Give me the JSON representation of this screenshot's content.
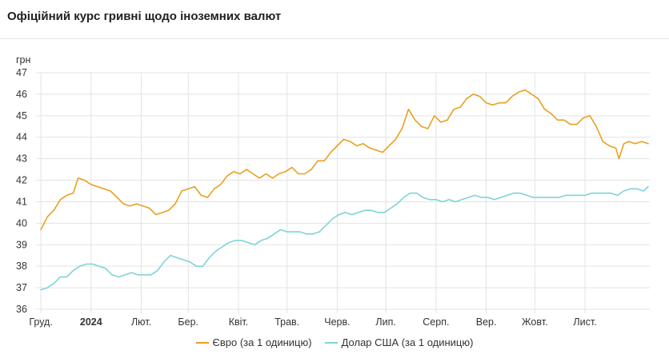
{
  "header": {
    "title": "Офіційний курс гривні щодо іноземних валют"
  },
  "chart_data": {
    "type": "line",
    "title": "Офіційний курс гривні щодо іноземних валют",
    "ylabel": "грн",
    "ylim": [
      36,
      47
    ],
    "yticks": [
      36,
      37,
      38,
      39,
      40,
      41,
      42,
      43,
      44,
      45,
      46,
      47
    ],
    "x_tick_labels": [
      {
        "label": "Груд.",
        "bold": false
      },
      {
        "label": "2024",
        "bold": true
      },
      {
        "label": "Лют.",
        "bold": false
      },
      {
        "label": "Бер.",
        "bold": false
      },
      {
        "label": "Квіт.",
        "bold": false
      },
      {
        "label": "Трав.",
        "bold": false
      },
      {
        "label": "Черв.",
        "bold": false
      },
      {
        "label": "Лип.",
        "bold": false
      },
      {
        "label": "Серп.",
        "bold": false
      },
      {
        "label": "Вер.",
        "bold": false
      },
      {
        "label": "Жовт.",
        "bold": false
      },
      {
        "label": "Лист.",
        "bold": false
      }
    ],
    "grid": true,
    "legend_position": "bottom",
    "series": [
      {
        "name": "Євро (за 1 одиницю)",
        "color": "#e8a020",
        "points": [
          [
            "2023-12-01",
            39.7
          ],
          [
            "2023-12-05",
            40.3
          ],
          [
            "2023-12-09",
            40.6
          ],
          [
            "2023-12-13",
            41.1
          ],
          [
            "2023-12-17",
            41.3
          ],
          [
            "2023-12-21",
            41.4
          ],
          [
            "2023-12-24",
            42.1
          ],
          [
            "2023-12-28",
            42.0
          ],
          [
            "2024-01-01",
            41.8
          ],
          [
            "2024-01-05",
            41.7
          ],
          [
            "2024-01-09",
            41.6
          ],
          [
            "2024-01-13",
            41.5
          ],
          [
            "2024-01-17",
            41.2
          ],
          [
            "2024-01-21",
            40.9
          ],
          [
            "2024-01-25",
            40.8
          ],
          [
            "2024-01-29",
            40.9
          ],
          [
            "2024-02-02",
            40.8
          ],
          [
            "2024-02-06",
            40.7
          ],
          [
            "2024-02-10",
            40.4
          ],
          [
            "2024-02-14",
            40.5
          ],
          [
            "2024-02-18",
            40.6
          ],
          [
            "2024-02-22",
            40.9
          ],
          [
            "2024-02-26",
            41.5
          ],
          [
            "2024-03-01",
            41.6
          ],
          [
            "2024-03-05",
            41.7
          ],
          [
            "2024-03-09",
            41.3
          ],
          [
            "2024-03-13",
            41.2
          ],
          [
            "2024-03-17",
            41.6
          ],
          [
            "2024-03-21",
            41.8
          ],
          [
            "2024-03-25",
            42.2
          ],
          [
            "2024-03-29",
            42.4
          ],
          [
            "2024-04-02",
            42.3
          ],
          [
            "2024-04-06",
            42.5
          ],
          [
            "2024-04-10",
            42.3
          ],
          [
            "2024-04-14",
            42.1
          ],
          [
            "2024-04-18",
            42.3
          ],
          [
            "2024-04-22",
            42.1
          ],
          [
            "2024-04-26",
            42.3
          ],
          [
            "2024-04-30",
            42.4
          ],
          [
            "2024-05-04",
            42.6
          ],
          [
            "2024-05-08",
            42.3
          ],
          [
            "2024-05-12",
            42.3
          ],
          [
            "2024-05-16",
            42.5
          ],
          [
            "2024-05-20",
            42.9
          ],
          [
            "2024-05-24",
            42.9
          ],
          [
            "2024-05-28",
            43.3
          ],
          [
            "2024-06-01",
            43.6
          ],
          [
            "2024-06-05",
            43.9
          ],
          [
            "2024-06-09",
            43.8
          ],
          [
            "2024-06-13",
            43.6
          ],
          [
            "2024-06-17",
            43.7
          ],
          [
            "2024-06-21",
            43.5
          ],
          [
            "2024-06-25",
            43.4
          ],
          [
            "2024-06-29",
            43.3
          ],
          [
            "2024-07-03",
            43.6
          ],
          [
            "2024-07-07",
            43.9
          ],
          [
            "2024-07-11",
            44.4
          ],
          [
            "2024-07-15",
            45.3
          ],
          [
            "2024-07-19",
            44.8
          ],
          [
            "2024-07-23",
            44.5
          ],
          [
            "2024-07-27",
            44.4
          ],
          [
            "2024-07-31",
            45.0
          ],
          [
            "2024-08-04",
            44.7
          ],
          [
            "2024-08-08",
            44.8
          ],
          [
            "2024-08-12",
            45.3
          ],
          [
            "2024-08-16",
            45.4
          ],
          [
            "2024-08-20",
            45.8
          ],
          [
            "2024-08-24",
            46.0
          ],
          [
            "2024-08-28",
            45.9
          ],
          [
            "2024-09-01",
            45.6
          ],
          [
            "2024-09-05",
            45.5
          ],
          [
            "2024-09-09",
            45.6
          ],
          [
            "2024-09-13",
            45.6
          ],
          [
            "2024-09-17",
            45.9
          ],
          [
            "2024-09-21",
            46.1
          ],
          [
            "2024-09-25",
            46.2
          ],
          [
            "2024-09-29",
            46.0
          ],
          [
            "2024-10-03",
            45.8
          ],
          [
            "2024-10-07",
            45.3
          ],
          [
            "2024-10-11",
            45.1
          ],
          [
            "2024-10-15",
            44.8
          ],
          [
            "2024-10-19",
            44.8
          ],
          [
            "2024-10-23",
            44.6
          ],
          [
            "2024-10-27",
            44.6
          ],
          [
            "2024-10-31",
            44.9
          ],
          [
            "2024-11-04",
            45.0
          ],
          [
            "2024-11-08",
            44.5
          ],
          [
            "2024-11-12",
            43.8
          ],
          [
            "2024-11-16",
            43.6
          ],
          [
            "2024-11-20",
            43.5
          ],
          [
            "2024-11-22",
            43.0
          ],
          [
            "2024-11-25",
            43.7
          ],
          [
            "2024-11-28",
            43.8
          ],
          [
            "2024-12-02",
            43.7
          ],
          [
            "2024-12-06",
            43.8
          ],
          [
            "2024-12-10",
            43.7
          ]
        ]
      },
      {
        "name": "Долар США (за 1 одиницю)",
        "color": "#7fd3d8",
        "points": [
          [
            "2023-12-01",
            36.9
          ],
          [
            "2023-12-05",
            37.0
          ],
          [
            "2023-12-09",
            37.2
          ],
          [
            "2023-12-13",
            37.5
          ],
          [
            "2023-12-17",
            37.5
          ],
          [
            "2023-12-21",
            37.8
          ],
          [
            "2023-12-25",
            38.0
          ],
          [
            "2023-12-29",
            38.1
          ],
          [
            "2024-01-02",
            38.1
          ],
          [
            "2024-01-06",
            38.0
          ],
          [
            "2024-01-10",
            37.9
          ],
          [
            "2024-01-14",
            37.6
          ],
          [
            "2024-01-18",
            37.5
          ],
          [
            "2024-01-22",
            37.6
          ],
          [
            "2024-01-26",
            37.7
          ],
          [
            "2024-01-30",
            37.6
          ],
          [
            "2024-02-03",
            37.6
          ],
          [
            "2024-02-07",
            37.6
          ],
          [
            "2024-02-11",
            37.8
          ],
          [
            "2024-02-15",
            38.2
          ],
          [
            "2024-02-19",
            38.5
          ],
          [
            "2024-02-23",
            38.4
          ],
          [
            "2024-02-27",
            38.3
          ],
          [
            "2024-03-02",
            38.2
          ],
          [
            "2024-03-06",
            38.0
          ],
          [
            "2024-03-10",
            38.0
          ],
          [
            "2024-03-14",
            38.4
          ],
          [
            "2024-03-18",
            38.7
          ],
          [
            "2024-03-22",
            38.9
          ],
          [
            "2024-03-26",
            39.1
          ],
          [
            "2024-03-30",
            39.2
          ],
          [
            "2024-04-03",
            39.2
          ],
          [
            "2024-04-07",
            39.1
          ],
          [
            "2024-04-11",
            39.0
          ],
          [
            "2024-04-15",
            39.2
          ],
          [
            "2024-04-19",
            39.3
          ],
          [
            "2024-04-23",
            39.5
          ],
          [
            "2024-04-27",
            39.7
          ],
          [
            "2024-05-01",
            39.6
          ],
          [
            "2024-05-05",
            39.6
          ],
          [
            "2024-05-09",
            39.6
          ],
          [
            "2024-05-13",
            39.5
          ],
          [
            "2024-05-17",
            39.5
          ],
          [
            "2024-05-21",
            39.6
          ],
          [
            "2024-05-25",
            39.9
          ],
          [
            "2024-05-29",
            40.2
          ],
          [
            "2024-06-02",
            40.4
          ],
          [
            "2024-06-06",
            40.5
          ],
          [
            "2024-06-10",
            40.4
          ],
          [
            "2024-06-14",
            40.5
          ],
          [
            "2024-06-18",
            40.6
          ],
          [
            "2024-06-22",
            40.6
          ],
          [
            "2024-06-26",
            40.5
          ],
          [
            "2024-06-30",
            40.5
          ],
          [
            "2024-07-04",
            40.7
          ],
          [
            "2024-07-08",
            40.9
          ],
          [
            "2024-07-12",
            41.2
          ],
          [
            "2024-07-16",
            41.4
          ],
          [
            "2024-07-20",
            41.4
          ],
          [
            "2024-07-24",
            41.2
          ],
          [
            "2024-07-28",
            41.1
          ],
          [
            "2024-08-01",
            41.1
          ],
          [
            "2024-08-05",
            41.0
          ],
          [
            "2024-08-09",
            41.1
          ],
          [
            "2024-08-13",
            41.0
          ],
          [
            "2024-08-17",
            41.1
          ],
          [
            "2024-08-21",
            41.2
          ],
          [
            "2024-08-25",
            41.3
          ],
          [
            "2024-08-29",
            41.2
          ],
          [
            "2024-09-02",
            41.2
          ],
          [
            "2024-09-06",
            41.1
          ],
          [
            "2024-09-10",
            41.2
          ],
          [
            "2024-09-14",
            41.3
          ],
          [
            "2024-09-18",
            41.4
          ],
          [
            "2024-09-22",
            41.4
          ],
          [
            "2024-09-26",
            41.3
          ],
          [
            "2024-09-30",
            41.2
          ],
          [
            "2024-10-04",
            41.2
          ],
          [
            "2024-10-08",
            41.2
          ],
          [
            "2024-10-12",
            41.2
          ],
          [
            "2024-10-16",
            41.2
          ],
          [
            "2024-10-20",
            41.3
          ],
          [
            "2024-10-24",
            41.3
          ],
          [
            "2024-10-28",
            41.3
          ],
          [
            "2024-11-01",
            41.3
          ],
          [
            "2024-11-05",
            41.4
          ],
          [
            "2024-11-09",
            41.4
          ],
          [
            "2024-11-13",
            41.4
          ],
          [
            "2024-11-17",
            41.4
          ],
          [
            "2024-11-21",
            41.3
          ],
          [
            "2024-11-25",
            41.5
          ],
          [
            "2024-11-29",
            41.6
          ],
          [
            "2024-12-03",
            41.6
          ],
          [
            "2024-12-07",
            41.5
          ],
          [
            "2024-12-10",
            41.7
          ]
        ]
      }
    ]
  }
}
